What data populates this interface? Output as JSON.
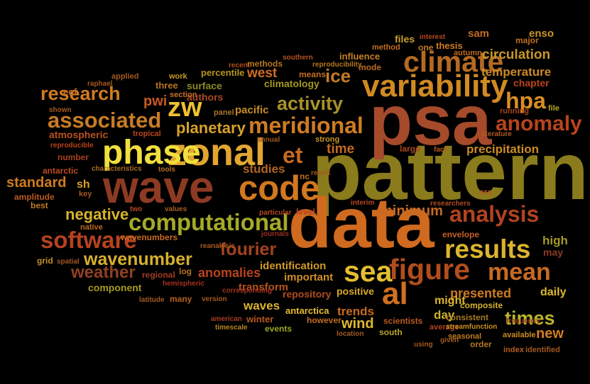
{
  "cloud": {
    "palette": [
      "#7a6a1a",
      "#a33f1a",
      "#c8751b",
      "#d99b2a",
      "#e3c133",
      "#8a3a22",
      "#b15a20",
      "#6b5a17"
    ],
    "words": [
      {
        "text": "pattern",
        "color": "#8a7b1c"
      },
      {
        "text": "psa",
        "color": "#a54a2a"
      },
      {
        "text": "data",
        "color": "#cf6a1f"
      },
      {
        "text": "wave",
        "color": "#8d3a23"
      },
      {
        "text": "zonal",
        "color": "#e2a630"
      },
      {
        "text": "phase",
        "color": "#f0df3c"
      },
      {
        "text": "code",
        "color": "#d2781e"
      },
      {
        "text": "variability",
        "color": "#d18a22"
      },
      {
        "text": "climate",
        "color": "#b46a22"
      },
      {
        "text": "figure",
        "color": "#b14d1d"
      },
      {
        "text": "results",
        "color": "#dcb52d"
      },
      {
        "text": "mean",
        "color": "#c86a22"
      },
      {
        "text": "computational",
        "color": "#a5aa28"
      },
      {
        "text": "software",
        "color": "#b6421f"
      },
      {
        "text": "analysis",
        "color": "#b2421f"
      },
      {
        "text": "meridional",
        "color": "#cf7c23"
      },
      {
        "text": "associated",
        "color": "#c87c25"
      },
      {
        "text": "zw",
        "color": "#edc12f"
      },
      {
        "text": "sea",
        "color": "#e5be2f"
      },
      {
        "text": "al",
        "color": "#d07020"
      },
      {
        "text": "et",
        "color": "#c46a22"
      },
      {
        "text": "research",
        "color": "#d07b22"
      },
      {
        "text": "planetary",
        "color": "#d7a22c"
      },
      {
        "text": "activity",
        "color": "#a8922a"
      },
      {
        "text": "anomaly",
        "color": "#b9441d"
      },
      {
        "text": "ice",
        "color": "#c47c24"
      },
      {
        "text": "hpa",
        "color": "#d88e26"
      },
      {
        "text": "times",
        "color": "#bbb62a"
      },
      {
        "text": "wavenumber",
        "color": "#d7b02e"
      },
      {
        "text": "fourier",
        "color": "#a4421f"
      },
      {
        "text": "weather",
        "color": "#8e4123"
      },
      {
        "text": "negative",
        "color": "#d9b22c"
      },
      {
        "text": "standard",
        "color": "#cf7c22"
      },
      {
        "text": "circulation",
        "color": "#c89628"
      },
      {
        "text": "temperature",
        "color": "#cc8b26"
      },
      {
        "text": "precipitation",
        "color": "#cc8b26"
      },
      {
        "text": "minimum",
        "color": "#c66a22"
      },
      {
        "text": "anomalies",
        "color": "#b8421f"
      },
      {
        "text": "time",
        "color": "#c46a22"
      },
      {
        "text": "studies",
        "color": "#b16422"
      },
      {
        "text": "trends",
        "color": "#c76a22"
      },
      {
        "text": "wind",
        "color": "#e0b82e"
      },
      {
        "text": "waves",
        "color": "#dcb52d"
      },
      {
        "text": "presented",
        "color": "#d07b22"
      },
      {
        "text": "daily",
        "color": "#e0b82e"
      },
      {
        "text": "new",
        "color": "#d37c22"
      },
      {
        "text": "high",
        "color": "#a39928"
      },
      {
        "text": "may",
        "color": "#8b3a22"
      },
      {
        "text": "pwi",
        "color": "#c85a1f"
      },
      {
        "text": "surface",
        "color": "#8d8a24"
      },
      {
        "text": "authors",
        "color": "#a84820"
      },
      {
        "text": "pacific",
        "color": "#c88c24"
      },
      {
        "text": "climatology",
        "color": "#a6991f"
      },
      {
        "text": "west",
        "color": "#cf6c22"
      },
      {
        "text": "three",
        "color": "#b6741f"
      },
      {
        "text": "section",
        "color": "#c8712a"
      },
      {
        "text": "percentile",
        "color": "#b6951f"
      },
      {
        "text": "work",
        "color": "#c49a22"
      },
      {
        "text": "atmospheric",
        "color": "#b95220"
      },
      {
        "text": "tropical",
        "color": "#b9441d"
      },
      {
        "text": "reproducible",
        "color": "#b9441d"
      },
      {
        "text": "number",
        "color": "#a64020"
      },
      {
        "text": "antarctic",
        "color": "#bd4a1f"
      },
      {
        "text": "characteristics",
        "color": "#a66d22"
      },
      {
        "text": "tools",
        "color": "#c06d22"
      },
      {
        "text": "amplitude",
        "color": "#b85a20"
      },
      {
        "text": "key",
        "color": "#a2571f"
      },
      {
        "text": "best",
        "color": "#c07a25"
      },
      {
        "text": "native",
        "color": "#bc6a20"
      },
      {
        "text": "two",
        "color": "#b7491f"
      },
      {
        "text": "values",
        "color": "#a6611f"
      },
      {
        "text": "sh",
        "color": "#d7a22c"
      },
      {
        "text": "particular",
        "color": "#b44b20"
      },
      {
        "text": "level",
        "color": "#b6401f"
      },
      {
        "text": "interim",
        "color": "#b94520"
      },
      {
        "text": "era",
        "color": "#b95a20"
      },
      {
        "text": "researchers",
        "color": "#ad4c20"
      },
      {
        "text": "envelope",
        "color": "#c25f23"
      },
      {
        "text": "wavenumbers",
        "color": "#c86a22"
      },
      {
        "text": "journals",
        "color": "#9e2f22"
      },
      {
        "text": "reanalysis",
        "color": "#a45a20"
      },
      {
        "text": "spatial",
        "color": "#a55722"
      },
      {
        "text": "grid",
        "color": "#c39028"
      },
      {
        "text": "log",
        "color": "#b6701f"
      },
      {
        "text": "regional",
        "color": "#a23b22"
      },
      {
        "text": "component",
        "color": "#a59a22"
      },
      {
        "text": "identification",
        "color": "#d19a27"
      },
      {
        "text": "transform",
        "color": "#b4541f"
      },
      {
        "text": "important",
        "color": "#d08e26"
      },
      {
        "text": "repository",
        "color": "#b04c1f"
      },
      {
        "text": "positive",
        "color": "#d9a82c"
      },
      {
        "text": "might",
        "color": "#dcb52d"
      },
      {
        "text": "composite",
        "color": "#d6b12d"
      },
      {
        "text": "day",
        "color": "#ccb42c"
      },
      {
        "text": "consistent",
        "color": "#a87a25"
      },
      {
        "text": "hemispheric",
        "color": "#a6311f"
      },
      {
        "text": "corresponding",
        "color": "#a2311f"
      },
      {
        "text": "latitude",
        "color": "#a4581f"
      },
      {
        "text": "many",
        "color": "#b6621f"
      },
      {
        "text": "version",
        "color": "#a6581f"
      },
      {
        "text": "antarctica",
        "color": "#e6be30"
      },
      {
        "text": "winter",
        "color": "#b6581f"
      },
      {
        "text": "events",
        "color": "#9da522"
      },
      {
        "text": "however",
        "color": "#c06c22"
      },
      {
        "text": "american",
        "color": "#a83a20"
      },
      {
        "text": "timescale",
        "color": "#b5881f"
      },
      {
        "text": "location",
        "color": "#a45a22"
      },
      {
        "text": "south",
        "color": "#b8a22a"
      },
      {
        "text": "scientists",
        "color": "#b85a20"
      },
      {
        "text": "average",
        "color": "#b2421f"
      },
      {
        "text": "streamfunction",
        "color": "#c8921f"
      },
      {
        "text": "seasonal",
        "color": "#c07a22"
      },
      {
        "text": "given",
        "color": "#a0581f"
      },
      {
        "text": "order",
        "color": "#b07a22"
      },
      {
        "text": "available",
        "color": "#cc8b26"
      },
      {
        "text": "frequency",
        "color": "#9e3d22"
      },
      {
        "text": "using",
        "color": "#a4581f"
      },
      {
        "text": "index",
        "color": "#b85a20"
      },
      {
        "text": "identified",
        "color": "#a4581f"
      },
      {
        "text": "files",
        "color": "#c8a02a"
      },
      {
        "text": "sam",
        "color": "#c06d22"
      },
      {
        "text": "enso",
        "color": "#c89628"
      },
      {
        "text": "major",
        "color": "#c06d22"
      },
      {
        "text": "interest",
        "color": "#b24820"
      },
      {
        "text": "one",
        "color": "#c07a25"
      },
      {
        "text": "thesis",
        "color": "#cf7c22"
      },
      {
        "text": "autumn",
        "color": "#bf6a20"
      },
      {
        "text": "method",
        "color": "#c06d22"
      },
      {
        "text": "influence",
        "color": "#c58028"
      },
      {
        "text": "mode",
        "color": "#bf6a20"
      },
      {
        "text": "reproducibility",
        "color": "#b6761f"
      },
      {
        "text": "recent",
        "color": "#b04c1f"
      },
      {
        "text": "methods",
        "color": "#b6761f"
      },
      {
        "text": "southern",
        "color": "#b45420"
      },
      {
        "text": "means",
        "color": "#c06d22"
      },
      {
        "text": "applied",
        "color": "#a4581f"
      },
      {
        "text": "raphael",
        "color": "#a6581f"
      },
      {
        "text": "eof",
        "color": "#bf6a20"
      },
      {
        "text": "shown",
        "color": "#a6581f"
      },
      {
        "text": "panel",
        "color": "#a8762a"
      },
      {
        "text": "chapter",
        "color": "#b9441d"
      },
      {
        "text": "file",
        "color": "#b2a822"
      },
      {
        "text": "running",
        "color": "#a4461f"
      },
      {
        "text": "literature",
        "color": "#b45a20"
      },
      {
        "text": "large",
        "color": "#a6481f"
      },
      {
        "text": "fact",
        "color": "#b45a20"
      },
      {
        "text": "strong",
        "color": "#c89628"
      },
      {
        "text": "annual",
        "color": "#a4581f"
      },
      {
        "text": "nc",
        "color": "#c06d22"
      },
      {
        "text": "result",
        "color": "#a4581f"
      }
    ]
  }
}
